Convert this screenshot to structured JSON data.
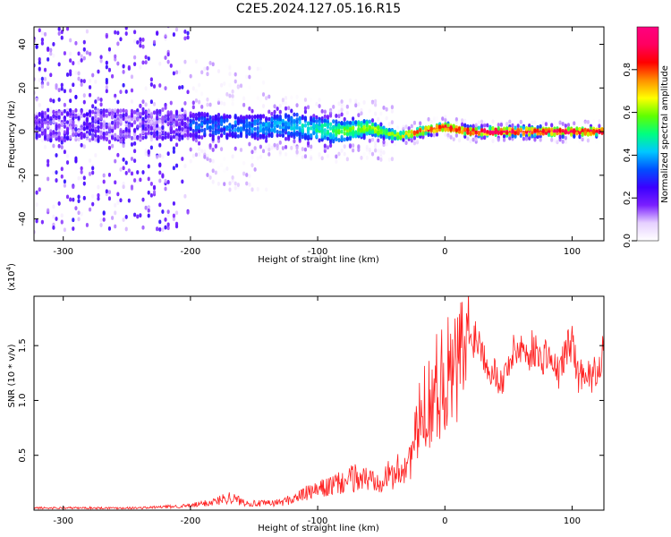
{
  "figure": {
    "title": "C2E5.2024.127.05.16.R15"
  },
  "chart_data": [
    {
      "type": "heatmap",
      "xlabel": "Height of straight line (km)",
      "ylabel": "Frequency (Hz)",
      "xlim": [
        -323,
        125
      ],
      "ylim": [
        -50,
        48
      ],
      "x_ticks": [
        -300,
        -200,
        -100,
        0,
        100
      ],
      "y_ticks": [
        -40,
        -20,
        0,
        20,
        40
      ],
      "colorbar": {
        "label": "Normalized spectral amplitude",
        "range": [
          0,
          1
        ],
        "ticks": [
          0.0,
          0.2,
          0.4,
          0.6,
          0.8
        ],
        "tick_labels": [
          "0.0",
          "0.2",
          "0.4",
          "0.6",
          "0.8"
        ],
        "colors": [
          "#ffffff",
          "#e6d0ff",
          "#7a1fff",
          "#3a00ff",
          "#0050ff",
          "#00c8ff",
          "#00ff80",
          "#60ff00",
          "#ffff00",
          "#ff9000",
          "#ff0000",
          "#ff0060",
          "#ff0080"
        ]
      },
      "ridge": {
        "x": [
          -320,
          -300,
          -250,
          -200,
          -150,
          -120,
          -100,
          -80,
          -60,
          -45,
          -35,
          -20,
          0,
          20,
          50,
          80,
          100,
          125
        ],
        "center_hz": [
          2,
          3,
          3,
          3,
          2,
          3,
          1,
          0,
          2,
          -1,
          -2,
          0,
          2,
          0,
          0,
          0,
          0,
          0
        ],
        "half_width_hz": [
          6,
          7,
          7,
          6,
          5,
          5,
          5,
          4,
          3,
          2,
          1.5,
          1.5,
          1.5,
          1.5,
          1.5,
          1.5,
          1.5,
          1.5
        ],
        "amplitude": [
          0.15,
          0.18,
          0.2,
          0.25,
          0.3,
          0.35,
          0.4,
          0.5,
          0.55,
          0.55,
          0.6,
          0.75,
          0.8,
          0.85,
          0.9,
          0.85,
          0.85,
          0.8
        ]
      }
    },
    {
      "type": "line",
      "xlabel": "Height of straight line (km)",
      "ylabel": "SNR (10 * v/v)",
      "y_multiplier": "(x10^4)",
      "xlim": [
        -323,
        125
      ],
      "ylim": [
        0,
        1.95
      ],
      "x_ticks": [
        -300,
        -200,
        -100,
        0,
        100
      ],
      "y_ticks": [
        0.5,
        1.0,
        1.5
      ],
      "y_tick_labels": [
        "0.5",
        "1.0",
        "1.5"
      ],
      "series": [
        {
          "color": "#ff2020",
          "x": [
            -323,
            -310,
            -300,
            -280,
            -260,
            -240,
            -220,
            -200,
            -190,
            -180,
            -170,
            -160,
            -150,
            -140,
            -130,
            -120,
            -110,
            -100,
            -90,
            -80,
            -70,
            -60,
            -50,
            -40,
            -35,
            -30,
            -25,
            -20,
            -15,
            -10,
            -5,
            0,
            5,
            10,
            15,
            20,
            25,
            30,
            35,
            40,
            45,
            50,
            55,
            60,
            65,
            70,
            75,
            80,
            85,
            90,
            95,
            100,
            105,
            110,
            115,
            120,
            125
          ],
          "y": [
            0.02,
            0.02,
            0.02,
            0.02,
            0.02,
            0.02,
            0.03,
            0.04,
            0.06,
            0.08,
            0.12,
            0.08,
            0.06,
            0.06,
            0.07,
            0.1,
            0.15,
            0.18,
            0.22,
            0.25,
            0.3,
            0.28,
            0.3,
            0.32,
            0.38,
            0.42,
            0.55,
            0.8,
            0.95,
            1.05,
            1.15,
            1.25,
            1.2,
            1.3,
            1.45,
            1.55,
            1.6,
            1.45,
            1.3,
            1.25,
            1.15,
            1.35,
            1.45,
            1.5,
            1.4,
            1.5,
            1.35,
            1.45,
            1.3,
            1.25,
            1.45,
            1.55,
            1.2,
            1.3,
            1.2,
            1.3,
            1.45
          ]
        }
      ]
    }
  ]
}
